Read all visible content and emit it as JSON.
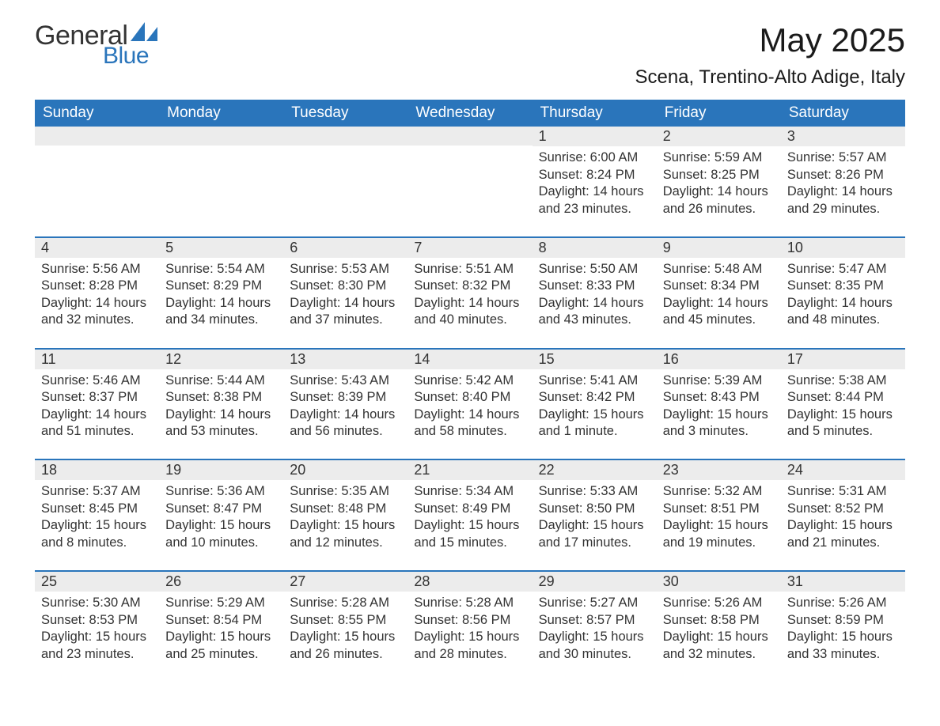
{
  "brand": {
    "word1": "General",
    "word2": "Blue",
    "text_color": "#333333",
    "accent_color": "#2a75bb"
  },
  "title": "May 2025",
  "location": "Scena, Trentino-Alto Adige, Italy",
  "colors": {
    "header_bg": "#2a75bb",
    "header_text": "#ffffff",
    "daynum_bg": "#ececec",
    "body_text": "#333333",
    "page_bg": "#ffffff",
    "row_divider": "#2a75bb"
  },
  "font": {
    "title_size_pt": 32,
    "location_size_pt": 18,
    "header_size_pt": 14,
    "body_size_pt": 12
  },
  "weekdays": [
    "Sunday",
    "Monday",
    "Tuesday",
    "Wednesday",
    "Thursday",
    "Friday",
    "Saturday"
  ],
  "weeks": [
    [
      {
        "day": "",
        "sunrise": "",
        "sunset": "",
        "daylight": ""
      },
      {
        "day": "",
        "sunrise": "",
        "sunset": "",
        "daylight": ""
      },
      {
        "day": "",
        "sunrise": "",
        "sunset": "",
        "daylight": ""
      },
      {
        "day": "",
        "sunrise": "",
        "sunset": "",
        "daylight": ""
      },
      {
        "day": "1",
        "sunrise": "Sunrise: 6:00 AM",
        "sunset": "Sunset: 8:24 PM",
        "daylight": "Daylight: 14 hours and 23 minutes."
      },
      {
        "day": "2",
        "sunrise": "Sunrise: 5:59 AM",
        "sunset": "Sunset: 8:25 PM",
        "daylight": "Daylight: 14 hours and 26 minutes."
      },
      {
        "day": "3",
        "sunrise": "Sunrise: 5:57 AM",
        "sunset": "Sunset: 8:26 PM",
        "daylight": "Daylight: 14 hours and 29 minutes."
      }
    ],
    [
      {
        "day": "4",
        "sunrise": "Sunrise: 5:56 AM",
        "sunset": "Sunset: 8:28 PM",
        "daylight": "Daylight: 14 hours and 32 minutes."
      },
      {
        "day": "5",
        "sunrise": "Sunrise: 5:54 AM",
        "sunset": "Sunset: 8:29 PM",
        "daylight": "Daylight: 14 hours and 34 minutes."
      },
      {
        "day": "6",
        "sunrise": "Sunrise: 5:53 AM",
        "sunset": "Sunset: 8:30 PM",
        "daylight": "Daylight: 14 hours and 37 minutes."
      },
      {
        "day": "7",
        "sunrise": "Sunrise: 5:51 AM",
        "sunset": "Sunset: 8:32 PM",
        "daylight": "Daylight: 14 hours and 40 minutes."
      },
      {
        "day": "8",
        "sunrise": "Sunrise: 5:50 AM",
        "sunset": "Sunset: 8:33 PM",
        "daylight": "Daylight: 14 hours and 43 minutes."
      },
      {
        "day": "9",
        "sunrise": "Sunrise: 5:48 AM",
        "sunset": "Sunset: 8:34 PM",
        "daylight": "Daylight: 14 hours and 45 minutes."
      },
      {
        "day": "10",
        "sunrise": "Sunrise: 5:47 AM",
        "sunset": "Sunset: 8:35 PM",
        "daylight": "Daylight: 14 hours and 48 minutes."
      }
    ],
    [
      {
        "day": "11",
        "sunrise": "Sunrise: 5:46 AM",
        "sunset": "Sunset: 8:37 PM",
        "daylight": "Daylight: 14 hours and 51 minutes."
      },
      {
        "day": "12",
        "sunrise": "Sunrise: 5:44 AM",
        "sunset": "Sunset: 8:38 PM",
        "daylight": "Daylight: 14 hours and 53 minutes."
      },
      {
        "day": "13",
        "sunrise": "Sunrise: 5:43 AM",
        "sunset": "Sunset: 8:39 PM",
        "daylight": "Daylight: 14 hours and 56 minutes."
      },
      {
        "day": "14",
        "sunrise": "Sunrise: 5:42 AM",
        "sunset": "Sunset: 8:40 PM",
        "daylight": "Daylight: 14 hours and 58 minutes."
      },
      {
        "day": "15",
        "sunrise": "Sunrise: 5:41 AM",
        "sunset": "Sunset: 8:42 PM",
        "daylight": "Daylight: 15 hours and 1 minute."
      },
      {
        "day": "16",
        "sunrise": "Sunrise: 5:39 AM",
        "sunset": "Sunset: 8:43 PM",
        "daylight": "Daylight: 15 hours and 3 minutes."
      },
      {
        "day": "17",
        "sunrise": "Sunrise: 5:38 AM",
        "sunset": "Sunset: 8:44 PM",
        "daylight": "Daylight: 15 hours and 5 minutes."
      }
    ],
    [
      {
        "day": "18",
        "sunrise": "Sunrise: 5:37 AM",
        "sunset": "Sunset: 8:45 PM",
        "daylight": "Daylight: 15 hours and 8 minutes."
      },
      {
        "day": "19",
        "sunrise": "Sunrise: 5:36 AM",
        "sunset": "Sunset: 8:47 PM",
        "daylight": "Daylight: 15 hours and 10 minutes."
      },
      {
        "day": "20",
        "sunrise": "Sunrise: 5:35 AM",
        "sunset": "Sunset: 8:48 PM",
        "daylight": "Daylight: 15 hours and 12 minutes."
      },
      {
        "day": "21",
        "sunrise": "Sunrise: 5:34 AM",
        "sunset": "Sunset: 8:49 PM",
        "daylight": "Daylight: 15 hours and 15 minutes."
      },
      {
        "day": "22",
        "sunrise": "Sunrise: 5:33 AM",
        "sunset": "Sunset: 8:50 PM",
        "daylight": "Daylight: 15 hours and 17 minutes."
      },
      {
        "day": "23",
        "sunrise": "Sunrise: 5:32 AM",
        "sunset": "Sunset: 8:51 PM",
        "daylight": "Daylight: 15 hours and 19 minutes."
      },
      {
        "day": "24",
        "sunrise": "Sunrise: 5:31 AM",
        "sunset": "Sunset: 8:52 PM",
        "daylight": "Daylight: 15 hours and 21 minutes."
      }
    ],
    [
      {
        "day": "25",
        "sunrise": "Sunrise: 5:30 AM",
        "sunset": "Sunset: 8:53 PM",
        "daylight": "Daylight: 15 hours and 23 minutes."
      },
      {
        "day": "26",
        "sunrise": "Sunrise: 5:29 AM",
        "sunset": "Sunset: 8:54 PM",
        "daylight": "Daylight: 15 hours and 25 minutes."
      },
      {
        "day": "27",
        "sunrise": "Sunrise: 5:28 AM",
        "sunset": "Sunset: 8:55 PM",
        "daylight": "Daylight: 15 hours and 26 minutes."
      },
      {
        "day": "28",
        "sunrise": "Sunrise: 5:28 AM",
        "sunset": "Sunset: 8:56 PM",
        "daylight": "Daylight: 15 hours and 28 minutes."
      },
      {
        "day": "29",
        "sunrise": "Sunrise: 5:27 AM",
        "sunset": "Sunset: 8:57 PM",
        "daylight": "Daylight: 15 hours and 30 minutes."
      },
      {
        "day": "30",
        "sunrise": "Sunrise: 5:26 AM",
        "sunset": "Sunset: 8:58 PM",
        "daylight": "Daylight: 15 hours and 32 minutes."
      },
      {
        "day": "31",
        "sunrise": "Sunrise: 5:26 AM",
        "sunset": "Sunset: 8:59 PM",
        "daylight": "Daylight: 15 hours and 33 minutes."
      }
    ]
  ]
}
